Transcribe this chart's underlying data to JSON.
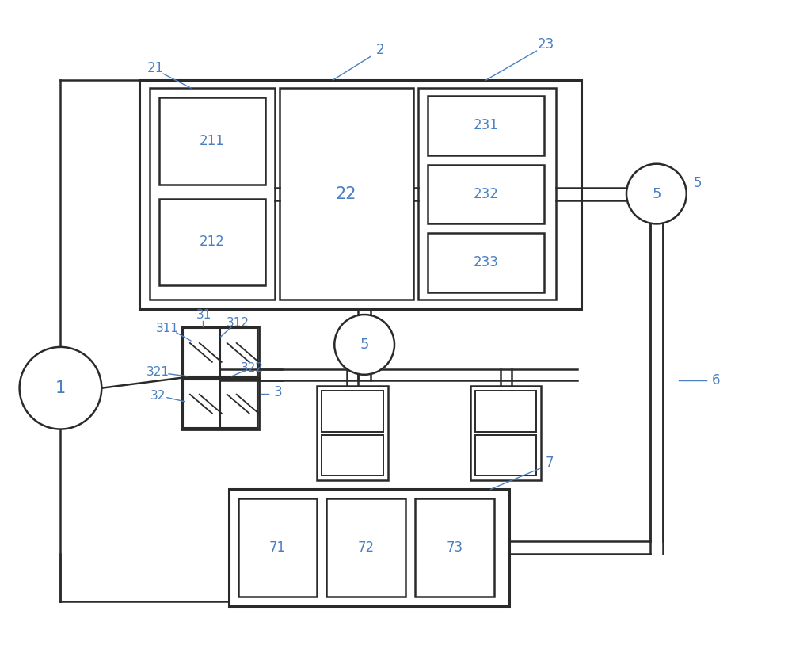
{
  "bg_color": "#ffffff",
  "line_color": "#2a2a2a",
  "label_color": "#4a7fc1",
  "fig_width": 10.0,
  "fig_height": 8.19,
  "dpi": 100
}
